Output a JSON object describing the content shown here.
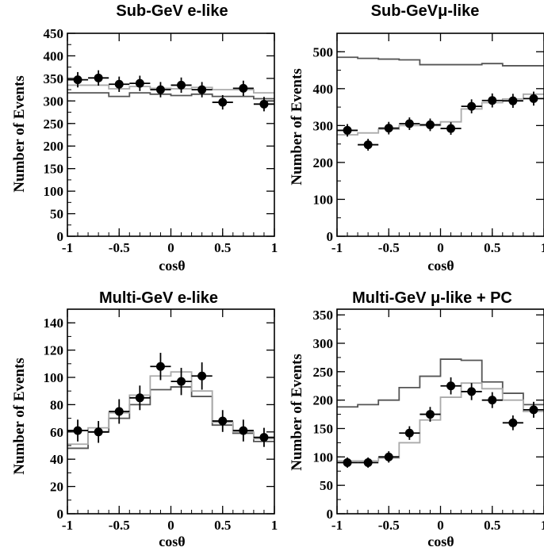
{
  "chart_data": [
    {
      "type": "line",
      "title": "Sub-GeV e-like",
      "xlabel": "cosθ",
      "ylabel": "Number of Events",
      "xlim": [
        -1,
        1
      ],
      "ylim": [
        0,
        450
      ],
      "xticks": [
        -1,
        -0.5,
        0,
        0.5,
        1
      ],
      "xtick_labels": [
        "-1",
        "-0.5",
        "0",
        "0.5",
        "1"
      ],
      "yticks": [
        0,
        50,
        100,
        150,
        200,
        250,
        300,
        350,
        400,
        450
      ],
      "ytick_labels": [
        "0",
        "50",
        "100",
        "150",
        "200",
        "250",
        "300",
        "350",
        "400",
        "450"
      ],
      "grid": false,
      "bin_edges": [
        -1,
        -0.8,
        -0.6,
        -0.4,
        -0.2,
        0,
        0.2,
        0.4,
        0.6,
        0.8,
        1
      ],
      "histograms": [
        {
          "color": "#555555",
          "values": [
            318,
            318,
            310,
            318,
            315,
            312,
            315,
            310,
            310,
            305
          ]
        },
        {
          "color": "#aaaaaa",
          "values": [
            335,
            335,
            327,
            332,
            328,
            327,
            330,
            325,
            325,
            318
          ]
        }
      ],
      "data_points": {
        "x": [
          -0.9,
          -0.7,
          -0.5,
          -0.3,
          -0.1,
          0.1,
          0.3,
          0.5,
          0.7,
          0.9
        ],
        "y": [
          347,
          351,
          337,
          339,
          325,
          335,
          325,
          297,
          328,
          293
        ],
        "err": [
          17,
          17,
          17,
          17,
          17,
          17,
          17,
          16,
          17,
          16
        ]
      }
    },
    {
      "type": "line",
      "title": "Sub-GeVμ-like",
      "xlabel": "cosθ",
      "ylabel": "Number of Events",
      "xlim": [
        -1,
        1
      ],
      "ylim": [
        0,
        550
      ],
      "xticks": [
        -1,
        -0.5,
        0,
        0.5,
        1
      ],
      "xtick_labels": [
        "-1",
        "-0.5",
        "0",
        "0.5",
        "1"
      ],
      "yticks": [
        0,
        100,
        200,
        300,
        400,
        500
      ],
      "ytick_labels": [
        "0",
        "100",
        "200",
        "300",
        "400",
        "500"
      ],
      "grid": false,
      "bin_edges": [
        -1,
        -0.8,
        -0.6,
        -0.4,
        -0.2,
        0,
        0.2,
        0.4,
        0.6,
        0.8,
        1
      ],
      "histograms": [
        {
          "color": "#555555",
          "values": [
            485,
            482,
            480,
            478,
            465,
            465,
            465,
            468,
            462,
            462
          ]
        },
        {
          "color": "#aaaaaa",
          "values": [
            275,
            280,
            290,
            300,
            300,
            310,
            345,
            362,
            372,
            385
          ]
        }
      ],
      "data_points": {
        "x": [
          -0.9,
          -0.7,
          -0.5,
          -0.3,
          -0.1,
          0.1,
          0.3,
          0.5,
          0.7,
          0.9
        ],
        "y": [
          287,
          248,
          293,
          305,
          302,
          292,
          352,
          368,
          367,
          373
        ],
        "err": [
          17,
          16,
          17,
          17,
          17,
          17,
          19,
          19,
          19,
          19
        ]
      }
    },
    {
      "type": "line",
      "title": "Multi-GeV e-like",
      "xlabel": "cosθ",
      "ylabel": "Number of Events",
      "xlim": [
        -1,
        1
      ],
      "ylim": [
        0,
        150
      ],
      "xticks": [
        -1,
        -0.5,
        0,
        0.5,
        1
      ],
      "xtick_labels": [
        "-1",
        "-0.5",
        "0",
        "0.5",
        "1"
      ],
      "yticks": [
        0,
        20,
        40,
        60,
        80,
        100,
        120,
        140
      ],
      "ytick_labels": [
        "0",
        "20",
        "40",
        "60",
        "80",
        "100",
        "120",
        "140"
      ],
      "grid": false,
      "bin_edges": [
        -1,
        -0.8,
        -0.6,
        -0.4,
        -0.2,
        0,
        0.2,
        0.4,
        0.6,
        0.8,
        1
      ],
      "histograms": [
        {
          "color": "#555555",
          "values": [
            48,
            60,
            70,
            80,
            91,
            93,
            86,
            65,
            59,
            53
          ]
        },
        {
          "color": "#aaaaaa",
          "values": [
            51,
            63,
            74,
            87,
            101,
            104,
            90,
            67,
            60,
            55
          ]
        }
      ],
      "data_points": {
        "x": [
          -0.9,
          -0.7,
          -0.5,
          -0.3,
          -0.1,
          0.1,
          0.3,
          0.5,
          0.7,
          0.9
        ],
        "y": [
          61,
          60,
          75,
          85,
          108,
          97,
          101,
          68,
          61,
          56
        ],
        "err": [
          8,
          8,
          9,
          9,
          10,
          10,
          10,
          8,
          8,
          7
        ]
      }
    },
    {
      "type": "line",
      "title": "Multi-GeV μ-like + PC",
      "xlabel": "cosθ",
      "ylabel": "Number of Events",
      "xlim": [
        -1,
        1
      ],
      "ylim": [
        0,
        360
      ],
      "xticks": [
        -1,
        -0.5,
        0,
        0.5,
        1
      ],
      "xtick_labels": [
        "-1",
        "-0.5",
        "0",
        "0.5",
        "1"
      ],
      "yticks": [
        0,
        50,
        100,
        150,
        200,
        250,
        300,
        350
      ],
      "ytick_labels": [
        "0",
        "50",
        "100",
        "150",
        "200",
        "250",
        "300",
        "350"
      ],
      "grid": false,
      "bin_edges": [
        -1,
        -0.8,
        -0.6,
        -0.4,
        -0.2,
        0,
        0.2,
        0.4,
        0.6,
        0.8,
        1
      ],
      "histograms": [
        {
          "color": "#555555",
          "values": [
            188,
            192,
            200,
            222,
            242,
            272,
            270,
            232,
            212,
            192
          ]
        },
        {
          "color": "#aaaaaa",
          "values": [
            93,
            93,
            98,
            125,
            165,
            205,
            230,
            220,
            200,
            180
          ]
        }
      ],
      "data_points": {
        "x": [
          -0.9,
          -0.7,
          -0.5,
          -0.3,
          -0.1,
          0.1,
          0.3,
          0.5,
          0.7,
          0.9
        ],
        "y": [
          90,
          90,
          100,
          142,
          175,
          225,
          215,
          200,
          160,
          183
        ],
        "err": [
          9,
          9,
          10,
          12,
          13,
          15,
          15,
          14,
          13,
          14
        ]
      }
    }
  ]
}
